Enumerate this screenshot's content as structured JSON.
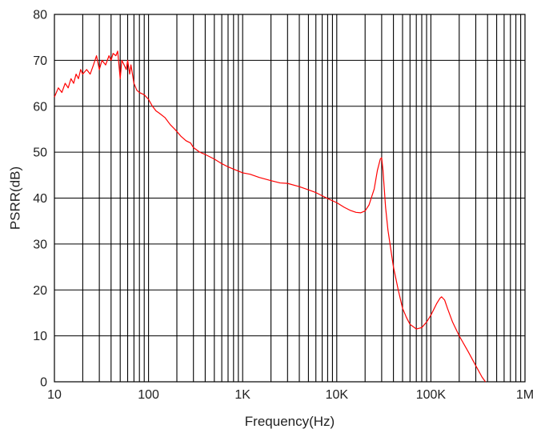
{
  "chart_data": {
    "type": "line",
    "xlabel": "Frequency(Hz)",
    "ylabel": "PSRR(dB)",
    "x_scale": "log",
    "xlim": [
      10,
      1000000
    ],
    "ylim": [
      0,
      80
    ],
    "grid": true,
    "x_ticks": [
      {
        "value": 10,
        "label": "10"
      },
      {
        "value": 100,
        "label": "100"
      },
      {
        "value": 1000,
        "label": "1K"
      },
      {
        "value": 10000,
        "label": "10K"
      },
      {
        "value": 100000,
        "label": "100K"
      },
      {
        "value": 1000000,
        "label": "1M"
      }
    ],
    "y_ticks": [
      0,
      10,
      20,
      30,
      40,
      50,
      60,
      70,
      80
    ],
    "series": [
      {
        "color": "#ff0000",
        "points": [
          [
            10,
            62
          ],
          [
            11,
            64
          ],
          [
            12,
            63
          ],
          [
            13,
            65
          ],
          [
            14,
            64
          ],
          [
            15,
            66
          ],
          [
            16,
            65
          ],
          [
            17,
            67
          ],
          [
            18,
            66
          ],
          [
            19,
            68
          ],
          [
            20,
            67
          ],
          [
            22,
            68
          ],
          [
            24,
            67
          ],
          [
            26,
            69
          ],
          [
            28,
            71
          ],
          [
            30,
            68
          ],
          [
            32,
            70
          ],
          [
            35,
            69
          ],
          [
            38,
            71
          ],
          [
            40,
            70
          ],
          [
            42,
            71.5
          ],
          [
            45,
            71
          ],
          [
            47,
            72
          ],
          [
            50,
            66
          ],
          [
            52,
            70
          ],
          [
            55,
            69
          ],
          [
            58,
            68
          ],
          [
            60,
            70
          ],
          [
            63,
            67
          ],
          [
            65,
            69
          ],
          [
            70,
            65
          ],
          [
            75,
            63.5
          ],
          [
            80,
            63
          ],
          [
            90,
            62.5
          ],
          [
            100,
            61.5
          ],
          [
            110,
            60
          ],
          [
            120,
            59
          ],
          [
            130,
            58.5
          ],
          [
            150,
            57.5
          ],
          [
            170,
            56
          ],
          [
            190,
            55
          ],
          [
            200,
            54.5
          ],
          [
            220,
            53.5
          ],
          [
            250,
            52.5
          ],
          [
            280,
            52
          ],
          [
            300,
            51
          ],
          [
            350,
            50
          ],
          [
            400,
            49.5
          ],
          [
            500,
            48.5
          ],
          [
            600,
            47.5
          ],
          [
            700,
            46.8
          ],
          [
            800,
            46.3
          ],
          [
            1000,
            45.5
          ],
          [
            1200,
            45.2
          ],
          [
            1500,
            44.5
          ],
          [
            2000,
            43.8
          ],
          [
            2500,
            43.3
          ],
          [
            3000,
            43.2
          ],
          [
            4000,
            42.5
          ],
          [
            5000,
            41.8
          ],
          [
            6000,
            41.2
          ],
          [
            7000,
            40.5
          ],
          [
            8000,
            39.9
          ],
          [
            10000,
            39
          ],
          [
            12000,
            38
          ],
          [
            14000,
            37.3
          ],
          [
            16000,
            36.9
          ],
          [
            18000,
            36.8
          ],
          [
            20000,
            37.2
          ],
          [
            22000,
            38.5
          ],
          [
            25000,
            42
          ],
          [
            27000,
            46
          ],
          [
            29000,
            48.5
          ],
          [
            30000,
            48.8
          ],
          [
            31000,
            46
          ],
          [
            33000,
            38
          ],
          [
            35000,
            33
          ],
          [
            40000,
            25
          ],
          [
            45000,
            20
          ],
          [
            50000,
            16
          ],
          [
            55000,
            14
          ],
          [
            60000,
            12.5
          ],
          [
            70000,
            11.5
          ],
          [
            80000,
            11.8
          ],
          [
            90000,
            13
          ],
          [
            100000,
            14.5
          ],
          [
            115000,
            17
          ],
          [
            125000,
            18.2
          ],
          [
            130000,
            18.5
          ],
          [
            140000,
            17.8
          ],
          [
            150000,
            16
          ],
          [
            170000,
            13
          ],
          [
            200000,
            10
          ],
          [
            250000,
            6.5
          ],
          [
            300000,
            3.5
          ],
          [
            350000,
            1
          ],
          [
            380000,
            0
          ]
        ]
      }
    ]
  }
}
